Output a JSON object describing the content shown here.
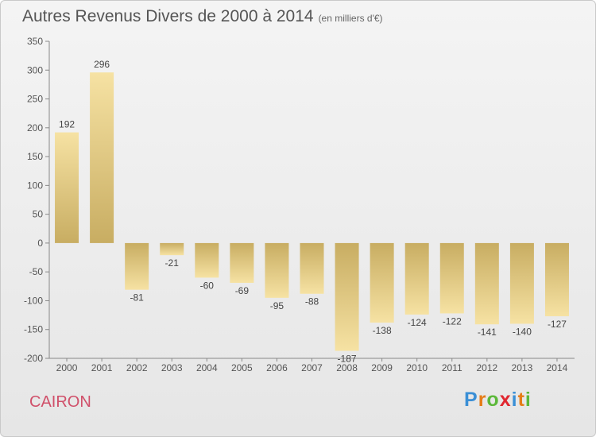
{
  "title": "Autres Revenus Divers de 2000 à 2014",
  "subtitle": "(en milliers d'€)",
  "commune": "CAIRON",
  "brand": {
    "letters": [
      "P",
      "r",
      "o",
      "x",
      "i",
      "t",
      "i"
    ],
    "colors": [
      "#3a8fd6",
      "#e57c17",
      "#5cb83a",
      "#e0262f",
      "#3a8fd6",
      "#e57c17",
      "#5cb83a"
    ]
  },
  "chart_data": {
    "type": "bar",
    "title": "Autres Revenus Divers de 2000 à 2014",
    "subtitle": "(en milliers d'€)",
    "categories": [
      "2000",
      "2001",
      "2002",
      "2003",
      "2004",
      "2005",
      "2006",
      "2007",
      "2008",
      "2009",
      "2010",
      "2011",
      "2012",
      "2013",
      "2014"
    ],
    "values": [
      192,
      296,
      -81,
      -21,
      -60,
      -69,
      -95,
      -88,
      -187,
      -138,
      -124,
      -122,
      -141,
      -140,
      -127
    ],
    "labels": [
      "192",
      "296",
      "-81",
      "-21",
      "-60",
      "-69",
      "-95",
      "-88",
      "-187",
      "-138",
      "-124",
      "-122",
      "-141",
      "-140",
      "-127"
    ],
    "ylim": [
      -200,
      350
    ],
    "yticks": [
      350,
      300,
      250,
      200,
      150,
      100,
      50,
      0,
      -50,
      -100,
      -150,
      -200
    ],
    "grid": false,
    "bar_color": "#d8bd6d"
  }
}
